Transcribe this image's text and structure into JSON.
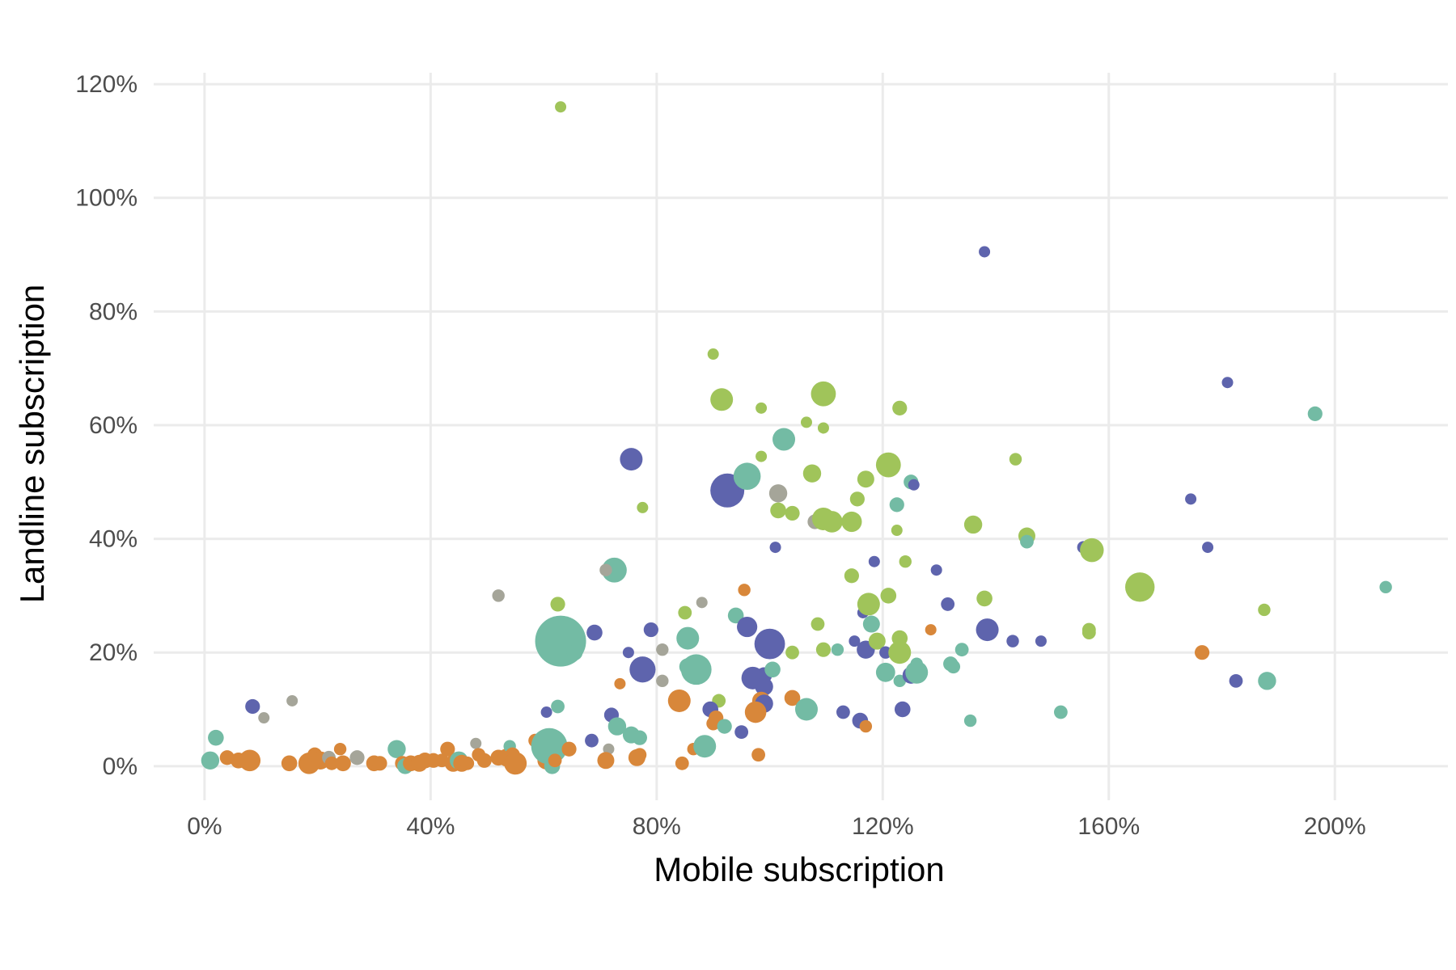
{
  "chart_data": {
    "type": "scatter",
    "title": "",
    "xlabel": "Mobile subscription",
    "ylabel": "Landline subscription",
    "xlim": [
      -9,
      220
    ],
    "ylim": [
      -6,
      122
    ],
    "x_ticks": [
      0,
      40,
      80,
      120,
      160,
      200
    ],
    "y_ticks": [
      0,
      20,
      40,
      60,
      80,
      100,
      120
    ],
    "x_tick_labels": [
      "0%",
      "40%",
      "80%",
      "120%",
      "160%",
      "200%"
    ],
    "y_tick_labels": [
      "0%",
      "20%",
      "40%",
      "60%",
      "80%",
      "100%",
      "120%"
    ],
    "grid": true,
    "legend": "none",
    "colors": {
      "orange": "#d8873a",
      "teal": "#73bba4",
      "navy": "#5e64ad",
      "lime": "#a0c45a",
      "gray": "#a5a599"
    },
    "points": [
      {
        "x": 63,
        "y": 116,
        "s": 1,
        "c": "lime"
      },
      {
        "x": 138,
        "y": 90.5,
        "s": 1,
        "c": "navy"
      },
      {
        "x": 181,
        "y": 67.5,
        "s": 1,
        "c": "navy"
      },
      {
        "x": 196.5,
        "y": 62,
        "s": 1.3,
        "c": "teal"
      },
      {
        "x": 209,
        "y": 31.5,
        "s": 1.1,
        "c": "teal"
      },
      {
        "x": 90,
        "y": 72.5,
        "s": 1,
        "c": "lime"
      },
      {
        "x": 91.5,
        "y": 64.5,
        "s": 2,
        "c": "lime"
      },
      {
        "x": 98.5,
        "y": 63,
        "s": 1,
        "c": "lime"
      },
      {
        "x": 109.5,
        "y": 65.5,
        "s": 2.2,
        "c": "lime"
      },
      {
        "x": 123,
        "y": 63,
        "s": 1.3,
        "c": "lime"
      },
      {
        "x": 106.5,
        "y": 60.5,
        "s": 1,
        "c": "lime"
      },
      {
        "x": 109.5,
        "y": 59.5,
        "s": 1,
        "c": "lime"
      },
      {
        "x": 102.5,
        "y": 57.5,
        "s": 2,
        "c": "teal"
      },
      {
        "x": 98.5,
        "y": 54.5,
        "s": 1,
        "c": "lime"
      },
      {
        "x": 107.5,
        "y": 51.5,
        "s": 1.6,
        "c": "lime"
      },
      {
        "x": 121,
        "y": 53,
        "s": 2.2,
        "c": "lime"
      },
      {
        "x": 117,
        "y": 50.5,
        "s": 1.5,
        "c": "lime"
      },
      {
        "x": 125,
        "y": 50,
        "s": 1.3,
        "c": "teal"
      },
      {
        "x": 125.5,
        "y": 49.5,
        "s": 1,
        "c": "navy"
      },
      {
        "x": 143.5,
        "y": 54,
        "s": 1.1,
        "c": "lime"
      },
      {
        "x": 75.5,
        "y": 54,
        "s": 2,
        "c": "navy"
      },
      {
        "x": 92.5,
        "y": 48.5,
        "s": 3,
        "c": "navy"
      },
      {
        "x": 96,
        "y": 51,
        "s": 2.4,
        "c": "teal"
      },
      {
        "x": 101.5,
        "y": 48,
        "s": 1.6,
        "c": "gray"
      },
      {
        "x": 101.5,
        "y": 45,
        "s": 1.4,
        "c": "lime"
      },
      {
        "x": 104,
        "y": 44.5,
        "s": 1.3,
        "c": "lime"
      },
      {
        "x": 77.5,
        "y": 45.5,
        "s": 1,
        "c": "lime"
      },
      {
        "x": 108,
        "y": 43,
        "s": 1.3,
        "c": "gray"
      },
      {
        "x": 109.5,
        "y": 43.5,
        "s": 2,
        "c": "lime"
      },
      {
        "x": 111,
        "y": 43,
        "s": 1.9,
        "c": "lime"
      },
      {
        "x": 114.5,
        "y": 43,
        "s": 1.8,
        "c": "lime"
      },
      {
        "x": 115.5,
        "y": 47,
        "s": 1.3,
        "c": "lime"
      },
      {
        "x": 122.5,
        "y": 46,
        "s": 1.3,
        "c": "teal"
      },
      {
        "x": 122.5,
        "y": 41.5,
        "s": 1,
        "c": "lime"
      },
      {
        "x": 136,
        "y": 42.5,
        "s": 1.6,
        "c": "lime"
      },
      {
        "x": 145.5,
        "y": 40.5,
        "s": 1.5,
        "c": "lime"
      },
      {
        "x": 145.5,
        "y": 39.5,
        "s": 1.2,
        "c": "teal"
      },
      {
        "x": 155.5,
        "y": 38.5,
        "s": 1.1,
        "c": "navy"
      },
      {
        "x": 157,
        "y": 38,
        "s": 2.1,
        "c": "lime"
      },
      {
        "x": 174.5,
        "y": 47,
        "s": 1,
        "c": "navy"
      },
      {
        "x": 177.5,
        "y": 38.5,
        "s": 1,
        "c": "navy"
      },
      {
        "x": 101,
        "y": 38.5,
        "s": 1,
        "c": "navy"
      },
      {
        "x": 124,
        "y": 36,
        "s": 1.1,
        "c": "lime"
      },
      {
        "x": 118.5,
        "y": 36,
        "s": 1,
        "c": "navy"
      },
      {
        "x": 129.5,
        "y": 34.5,
        "s": 1,
        "c": "navy"
      },
      {
        "x": 114.5,
        "y": 33.5,
        "s": 1.3,
        "c": "lime"
      },
      {
        "x": 72.5,
        "y": 34.5,
        "s": 2.2,
        "c": "teal"
      },
      {
        "x": 71,
        "y": 34.5,
        "s": 1.1,
        "c": "gray"
      },
      {
        "x": 52,
        "y": 30,
        "s": 1.1,
        "c": "gray"
      },
      {
        "x": 62.5,
        "y": 28.5,
        "s": 1.3,
        "c": "lime"
      },
      {
        "x": 95.5,
        "y": 31,
        "s": 1.1,
        "c": "orange"
      },
      {
        "x": 88,
        "y": 28.8,
        "s": 1,
        "c": "gray"
      },
      {
        "x": 85,
        "y": 27,
        "s": 1.2,
        "c": "lime"
      },
      {
        "x": 94,
        "y": 26.5,
        "s": 1.4,
        "c": "teal"
      },
      {
        "x": 116.5,
        "y": 27,
        "s": 1,
        "c": "navy"
      },
      {
        "x": 117.5,
        "y": 28.5,
        "s": 2,
        "c": "lime"
      },
      {
        "x": 121,
        "y": 30,
        "s": 1.4,
        "c": "lime"
      },
      {
        "x": 131.5,
        "y": 28.5,
        "s": 1.2,
        "c": "navy"
      },
      {
        "x": 138,
        "y": 29.5,
        "s": 1.4,
        "c": "lime"
      },
      {
        "x": 165.5,
        "y": 31.5,
        "s": 2.6,
        "c": "lime"
      },
      {
        "x": 187.5,
        "y": 27.5,
        "s": 1.1,
        "c": "lime"
      },
      {
        "x": 108.5,
        "y": 25,
        "s": 1.2,
        "c": "lime"
      },
      {
        "x": 118,
        "y": 25,
        "s": 1.5,
        "c": "teal"
      },
      {
        "x": 128.5,
        "y": 24,
        "s": 1,
        "c": "orange"
      },
      {
        "x": 138.5,
        "y": 24,
        "s": 2,
        "c": "navy"
      },
      {
        "x": 156.5,
        "y": 24,
        "s": 1.2,
        "c": "lime"
      },
      {
        "x": 156.5,
        "y": 23.5,
        "s": 1.2,
        "c": "lime"
      },
      {
        "x": 143,
        "y": 22,
        "s": 1.1,
        "c": "navy"
      },
      {
        "x": 148,
        "y": 22,
        "s": 1,
        "c": "navy"
      },
      {
        "x": 63,
        "y": 22,
        "s": 4.5,
        "c": "teal"
      },
      {
        "x": 65.5,
        "y": 20,
        "s": 1.4,
        "c": "teal"
      },
      {
        "x": 69,
        "y": 23.5,
        "s": 1.4,
        "c": "navy"
      },
      {
        "x": 79,
        "y": 24,
        "s": 1.3,
        "c": "navy"
      },
      {
        "x": 85.5,
        "y": 22.5,
        "s": 2,
        "c": "teal"
      },
      {
        "x": 96,
        "y": 24.5,
        "s": 1.8,
        "c": "navy"
      },
      {
        "x": 100,
        "y": 21.5,
        "s": 2.7,
        "c": "navy"
      },
      {
        "x": 104,
        "y": 20,
        "s": 1.2,
        "c": "lime"
      },
      {
        "x": 109.5,
        "y": 20.5,
        "s": 1.3,
        "c": "lime"
      },
      {
        "x": 112,
        "y": 20.5,
        "s": 1.1,
        "c": "teal"
      },
      {
        "x": 115,
        "y": 22,
        "s": 1,
        "c": "navy"
      },
      {
        "x": 117,
        "y": 20.5,
        "s": 1.6,
        "c": "navy"
      },
      {
        "x": 119,
        "y": 22,
        "s": 1.5,
        "c": "lime"
      },
      {
        "x": 120.5,
        "y": 20,
        "s": 1.1,
        "c": "navy"
      },
      {
        "x": 123,
        "y": 22.5,
        "s": 1.4,
        "c": "lime"
      },
      {
        "x": 123,
        "y": 20,
        "s": 2,
        "c": "lime"
      },
      {
        "x": 134,
        "y": 20.5,
        "s": 1.2,
        "c": "teal"
      },
      {
        "x": 176.5,
        "y": 20,
        "s": 1.3,
        "c": "orange"
      },
      {
        "x": 75,
        "y": 20,
        "s": 1,
        "c": "navy"
      },
      {
        "x": 77.5,
        "y": 17,
        "s": 2.3,
        "c": "navy"
      },
      {
        "x": 81,
        "y": 20.5,
        "s": 1.1,
        "c": "gray"
      },
      {
        "x": 85.5,
        "y": 17.5,
        "s": 1.5,
        "c": "teal"
      },
      {
        "x": 87,
        "y": 17,
        "s": 2.7,
        "c": "teal"
      },
      {
        "x": 97,
        "y": 15.5,
        "s": 2,
        "c": "navy"
      },
      {
        "x": 99,
        "y": 16,
        "s": 1.4,
        "c": "navy"
      },
      {
        "x": 99,
        "y": 14,
        "s": 1.6,
        "c": "navy"
      },
      {
        "x": 100.5,
        "y": 17,
        "s": 1.4,
        "c": "teal"
      },
      {
        "x": 120.5,
        "y": 16.5,
        "s": 1.7,
        "c": "teal"
      },
      {
        "x": 123,
        "y": 15,
        "s": 1.1,
        "c": "teal"
      },
      {
        "x": 125,
        "y": 16,
        "s": 1.5,
        "c": "navy"
      },
      {
        "x": 126,
        "y": 18,
        "s": 1.1,
        "c": "teal"
      },
      {
        "x": 126,
        "y": 16.5,
        "s": 2,
        "c": "teal"
      },
      {
        "x": 132,
        "y": 18,
        "s": 1.3,
        "c": "teal"
      },
      {
        "x": 132.5,
        "y": 17.5,
        "s": 1.2,
        "c": "teal"
      },
      {
        "x": 182.5,
        "y": 15,
        "s": 1.2,
        "c": "navy"
      },
      {
        "x": 188,
        "y": 15,
        "s": 1.6,
        "c": "teal"
      },
      {
        "x": 73.5,
        "y": 14.5,
        "s": 1,
        "c": "orange"
      },
      {
        "x": 81,
        "y": 15,
        "s": 1.1,
        "c": "gray"
      },
      {
        "x": 84,
        "y": 11.5,
        "s": 2,
        "c": "orange"
      },
      {
        "x": 91,
        "y": 11.5,
        "s": 1.2,
        "c": "lime"
      },
      {
        "x": 98.5,
        "y": 11.5,
        "s": 1.6,
        "c": "orange"
      },
      {
        "x": 99,
        "y": 11,
        "s": 1.6,
        "c": "navy"
      },
      {
        "x": 97.5,
        "y": 9.5,
        "s": 1.9,
        "c": "orange"
      },
      {
        "x": 104,
        "y": 12,
        "s": 1.4,
        "c": "orange"
      },
      {
        "x": 106.5,
        "y": 10,
        "s": 2,
        "c": "teal"
      },
      {
        "x": 113,
        "y": 9.5,
        "s": 1.2,
        "c": "navy"
      },
      {
        "x": 116,
        "y": 8,
        "s": 1.4,
        "c": "navy"
      },
      {
        "x": 117,
        "y": 7,
        "s": 1.1,
        "c": "orange"
      },
      {
        "x": 123.5,
        "y": 10,
        "s": 1.4,
        "c": "navy"
      },
      {
        "x": 135.5,
        "y": 8,
        "s": 1.1,
        "c": "teal"
      },
      {
        "x": 151.5,
        "y": 9.5,
        "s": 1.2,
        "c": "teal"
      },
      {
        "x": 89.5,
        "y": 10,
        "s": 1.4,
        "c": "navy"
      },
      {
        "x": 90.5,
        "y": 8.5,
        "s": 1.3,
        "c": "orange"
      },
      {
        "x": 90,
        "y": 7.5,
        "s": 1.2,
        "c": "orange"
      },
      {
        "x": 92,
        "y": 7,
        "s": 1.3,
        "c": "teal"
      },
      {
        "x": 95,
        "y": 6,
        "s": 1.2,
        "c": "navy"
      },
      {
        "x": 72,
        "y": 9,
        "s": 1.3,
        "c": "navy"
      },
      {
        "x": 73,
        "y": 7,
        "s": 1.6,
        "c": "teal"
      },
      {
        "x": 75.5,
        "y": 5.5,
        "s": 1.5,
        "c": "teal"
      },
      {
        "x": 77,
        "y": 5,
        "s": 1.3,
        "c": "teal"
      },
      {
        "x": 68.5,
        "y": 4.5,
        "s": 1.2,
        "c": "navy"
      },
      {
        "x": 86.5,
        "y": 3,
        "s": 1.1,
        "c": "orange"
      },
      {
        "x": 88.5,
        "y": 3.5,
        "s": 2,
        "c": "teal"
      },
      {
        "x": 71.5,
        "y": 3,
        "s": 1,
        "c": "gray"
      },
      {
        "x": 60.5,
        "y": 9.5,
        "s": 1,
        "c": "navy"
      },
      {
        "x": 62.5,
        "y": 10.5,
        "s": 1.2,
        "c": "teal"
      },
      {
        "x": 8.5,
        "y": 10.5,
        "s": 1.3,
        "c": "navy"
      },
      {
        "x": 10.5,
        "y": 8.5,
        "s": 1,
        "c": "gray"
      },
      {
        "x": 15.5,
        "y": 11.5,
        "s": 1,
        "c": "gray"
      },
      {
        "x": 2,
        "y": 5,
        "s": 1.4,
        "c": "teal"
      },
      {
        "x": 1,
        "y": 1,
        "s": 1.6,
        "c": "teal"
      },
      {
        "x": 4,
        "y": 1.5,
        "s": 1.3,
        "c": "orange"
      },
      {
        "x": 6,
        "y": 1,
        "s": 1.4,
        "c": "orange"
      },
      {
        "x": 8,
        "y": 1,
        "s": 1.9,
        "c": "orange"
      },
      {
        "x": 15,
        "y": 0.5,
        "s": 1.4,
        "c": "orange"
      },
      {
        "x": 18.5,
        "y": 0.5,
        "s": 1.9,
        "c": "orange"
      },
      {
        "x": 19.5,
        "y": 2,
        "s": 1.3,
        "c": "orange"
      },
      {
        "x": 20.5,
        "y": 1,
        "s": 1.6,
        "c": "orange"
      },
      {
        "x": 22,
        "y": 1.5,
        "s": 1.2,
        "c": "gray"
      },
      {
        "x": 22.5,
        "y": 0.5,
        "s": 1.2,
        "c": "orange"
      },
      {
        "x": 24,
        "y": 3,
        "s": 1.1,
        "c": "orange"
      },
      {
        "x": 24.5,
        "y": 0.5,
        "s": 1.4,
        "c": "orange"
      },
      {
        "x": 27,
        "y": 1.5,
        "s": 1.3,
        "c": "gray"
      },
      {
        "x": 30,
        "y": 0.5,
        "s": 1.4,
        "c": "orange"
      },
      {
        "x": 31,
        "y": 0.5,
        "s": 1.3,
        "c": "orange"
      },
      {
        "x": 34,
        "y": 3,
        "s": 1.6,
        "c": "teal"
      },
      {
        "x": 35,
        "y": 0.5,
        "s": 1.3,
        "c": "orange"
      },
      {
        "x": 35.5,
        "y": 0,
        "s": 1.4,
        "c": "teal"
      },
      {
        "x": 36.5,
        "y": 0.5,
        "s": 1.4,
        "c": "orange"
      },
      {
        "x": 38,
        "y": 0.5,
        "s": 1.5,
        "c": "orange"
      },
      {
        "x": 39,
        "y": 1,
        "s": 1.4,
        "c": "orange"
      },
      {
        "x": 40.5,
        "y": 1,
        "s": 1.3,
        "c": "orange"
      },
      {
        "x": 42,
        "y": 1,
        "s": 1.2,
        "c": "orange"
      },
      {
        "x": 43,
        "y": 3,
        "s": 1.3,
        "c": "orange"
      },
      {
        "x": 44,
        "y": 0.5,
        "s": 1.5,
        "c": "orange"
      },
      {
        "x": 45,
        "y": 1,
        "s": 1.6,
        "c": "teal"
      },
      {
        "x": 45.5,
        "y": 0.5,
        "s": 1.5,
        "c": "orange"
      },
      {
        "x": 46.5,
        "y": 0.5,
        "s": 1.2,
        "c": "orange"
      },
      {
        "x": 48,
        "y": 4,
        "s": 1,
        "c": "gray"
      },
      {
        "x": 48.5,
        "y": 2,
        "s": 1.2,
        "c": "orange"
      },
      {
        "x": 49.5,
        "y": 1,
        "s": 1.3,
        "c": "orange"
      },
      {
        "x": 52,
        "y": 1.5,
        "s": 1.4,
        "c": "orange"
      },
      {
        "x": 53.5,
        "y": 1.5,
        "s": 1.6,
        "c": "orange"
      },
      {
        "x": 54,
        "y": 3.5,
        "s": 1.1,
        "c": "teal"
      },
      {
        "x": 54.5,
        "y": 2,
        "s": 1.3,
        "c": "orange"
      },
      {
        "x": 55,
        "y": 0.5,
        "s": 2,
        "c": "orange"
      },
      {
        "x": 58.5,
        "y": 4.5,
        "s": 1.2,
        "c": "orange"
      },
      {
        "x": 59.5,
        "y": 4.5,
        "s": 1.2,
        "c": "orange"
      },
      {
        "x": 60.5,
        "y": 1,
        "s": 1.6,
        "c": "orange"
      },
      {
        "x": 61,
        "y": 3.5,
        "s": 3.2,
        "c": "teal"
      },
      {
        "x": 61.5,
        "y": 0,
        "s": 1.4,
        "c": "teal"
      },
      {
        "x": 62,
        "y": 1,
        "s": 1.2,
        "c": "orange"
      },
      {
        "x": 64.5,
        "y": 3,
        "s": 1.3,
        "c": "orange"
      },
      {
        "x": 71,
        "y": 1,
        "s": 1.5,
        "c": "orange"
      },
      {
        "x": 76.5,
        "y": 1.5,
        "s": 1.5,
        "c": "orange"
      },
      {
        "x": 77,
        "y": 2,
        "s": 1.2,
        "c": "orange"
      },
      {
        "x": 84.5,
        "y": 0.5,
        "s": 1.2,
        "c": "orange"
      },
      {
        "x": 98,
        "y": 2,
        "s": 1.2,
        "c": "orange"
      }
    ]
  }
}
